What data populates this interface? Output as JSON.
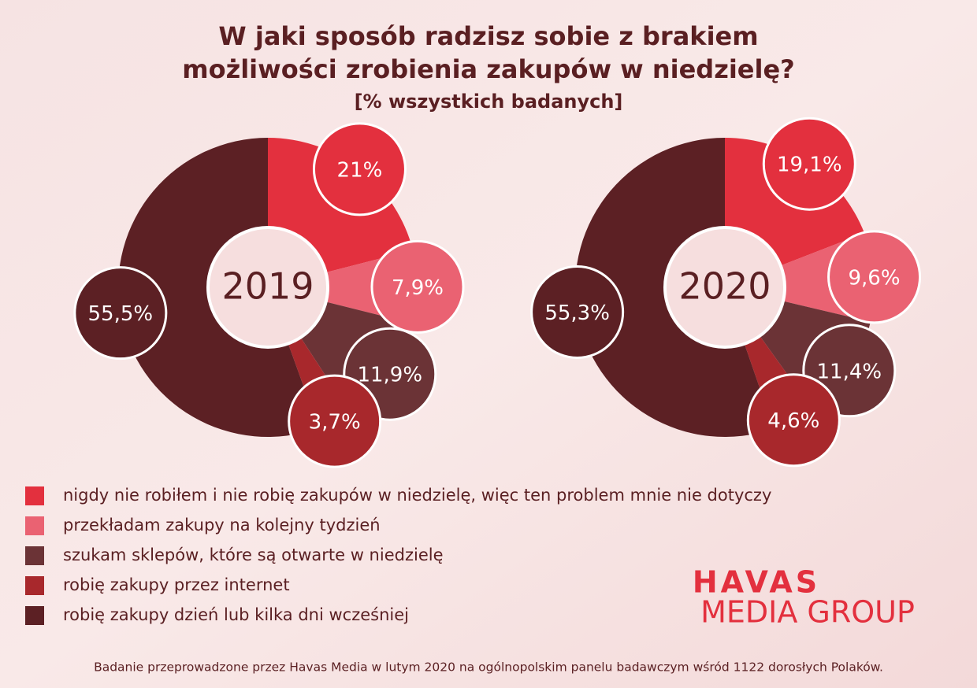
{
  "title": [
    "W jaki sposób radzisz sobie z brakiem",
    "możliwości zrobienia zakupów w niedzielę?"
  ],
  "subtitle": "[% wszystkich badanych]",
  "categories": [
    "nigdy nie robiłem i nie robię zakupów w niedzielę, więc ten problem mnie nie dotyczy",
    "przekładam zakupy na kolejny tydzień",
    "szukam sklepów, które są otwarte w niedzielę",
    "robię zakupy przez internet",
    "robię zakupy dzień lub kilka dni wcześniej"
  ],
  "colors": [
    "#e3303e",
    "#ea6272",
    "#6b3336",
    "#a8282c",
    "#5c2024"
  ],
  "logo": [
    "HAVAS",
    "MEDIA GROUP"
  ],
  "footnote": "Badanie przeprowadzone przez Havas Media w lutym 2020 na ogólnopolskim panelu badawczym wśród 1122 dorosłych Polaków.",
  "chart_data": [
    {
      "type": "pie",
      "label": "2019",
      "values": [
        21,
        7.9,
        11.9,
        3.7,
        55.5
      ],
      "value_labels": [
        "21%",
        "7,9%",
        "11,9%",
        "3,7%",
        "55,5%"
      ]
    },
    {
      "type": "pie",
      "label": "2020",
      "values": [
        19.1,
        9.6,
        11.4,
        4.6,
        55.3
      ],
      "value_labels": [
        "19,1%",
        "9,6%",
        "11,4%",
        "4,6%",
        "55,3%"
      ]
    }
  ]
}
